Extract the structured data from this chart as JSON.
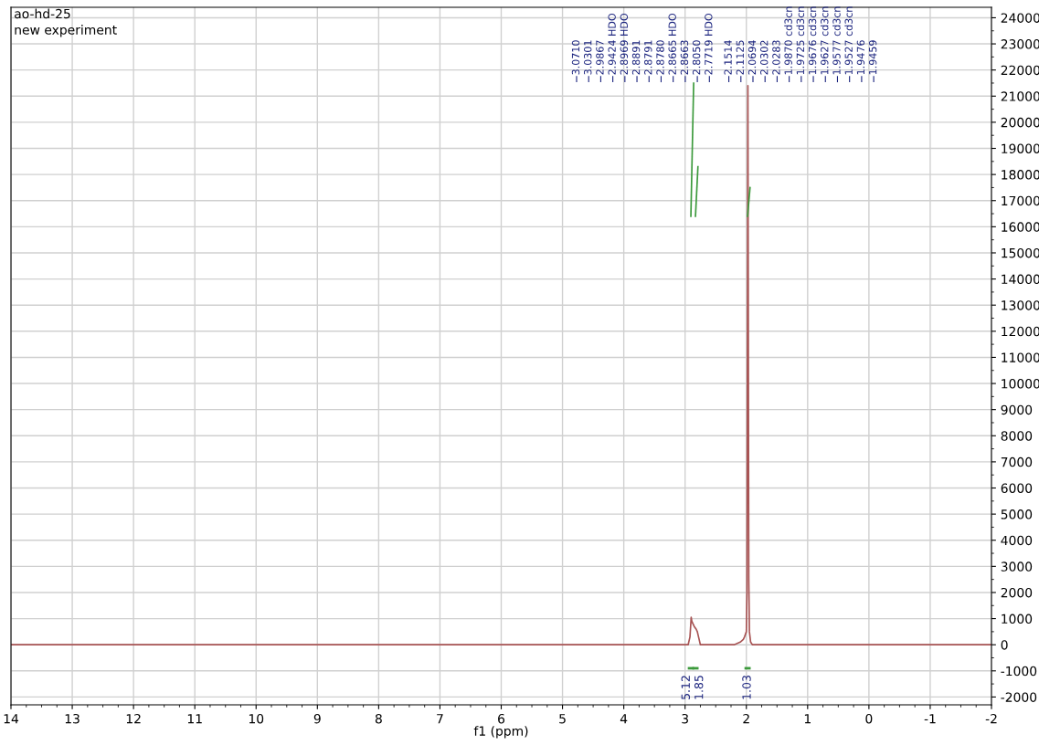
{
  "chart_data": {
    "type": "line",
    "title": "ao-hd-25",
    "subtitle": "new experiment",
    "xlabel": "f1 (ppm)",
    "xlim": [
      14,
      -2
    ],
    "xticks": [
      14,
      13,
      12,
      11,
      10,
      9,
      8,
      7,
      6,
      5,
      4,
      3,
      2,
      1,
      0,
      -1,
      -2
    ],
    "ylim": [
      -2300,
      24400
    ],
    "yticks": [
      -2000,
      -1000,
      0,
      1000,
      2000,
      3000,
      4000,
      5000,
      6000,
      7000,
      8000,
      9000,
      10000,
      11000,
      12000,
      13000,
      14000,
      15000,
      16000,
      17000,
      18000,
      19000,
      20000,
      21000,
      22000,
      23000,
      24000
    ],
    "grid": true,
    "marker": "none",
    "line_style": "solid",
    "series": [
      {
        "color": "#a85454",
        "x": [
          14,
          3.1,
          3.07,
          2.95,
          2.92,
          2.9,
          2.89,
          2.87,
          2.85,
          2.82,
          2.8,
          2.78,
          2.75,
          2.2,
          2.15,
          2.1,
          2.05,
          2.03,
          2.0,
          1.99,
          1.975,
          1.96,
          1.95,
          1.93,
          1.9,
          -2
        ],
        "values": [
          0,
          0,
          0,
          0,
          300,
          1050,
          900,
          800,
          700,
          600,
          500,
          300,
          0,
          0,
          50,
          100,
          200,
          300,
          500,
          2000,
          21400,
          2500,
          500,
          100,
          0,
          0
        ]
      },
      {
        "color": "#3c9a3c",
        "x": [
          2.905,
          2.86
        ],
        "values": [
          16400,
          21500
        ]
      },
      {
        "color": "#3c9a3c",
        "x": [
          2.83,
          2.79
        ],
        "values": [
          16400,
          18300
        ]
      },
      {
        "color": "#3c9a3c",
        "x": [
          1.98,
          1.94
        ],
        "values": [
          16400,
          17500
        ]
      }
    ],
    "annotations": [
      "3.0710",
      "3.0301",
      "2.9867",
      "2.9424 HDO",
      "2.8969 HDO",
      "2.8891",
      "2.8791",
      "2.8780",
      "2.8665 HDO",
      "2.8663",
      "2.8050",
      "2.7719 HDO",
      "2.1514",
      "2.1125",
      "2.0694",
      "2.0302",
      "2.0283",
      "1.9870 cd3cn",
      "1.9725 cd3cn",
      "1.9676 cd3cn",
      "1.9627 cd3cn",
      "1.9577 cd3cn",
      "1.9527 cd3cn",
      "1.9476",
      "1.9459",
      "5.12",
      "1.85",
      "1.03"
    ]
  }
}
